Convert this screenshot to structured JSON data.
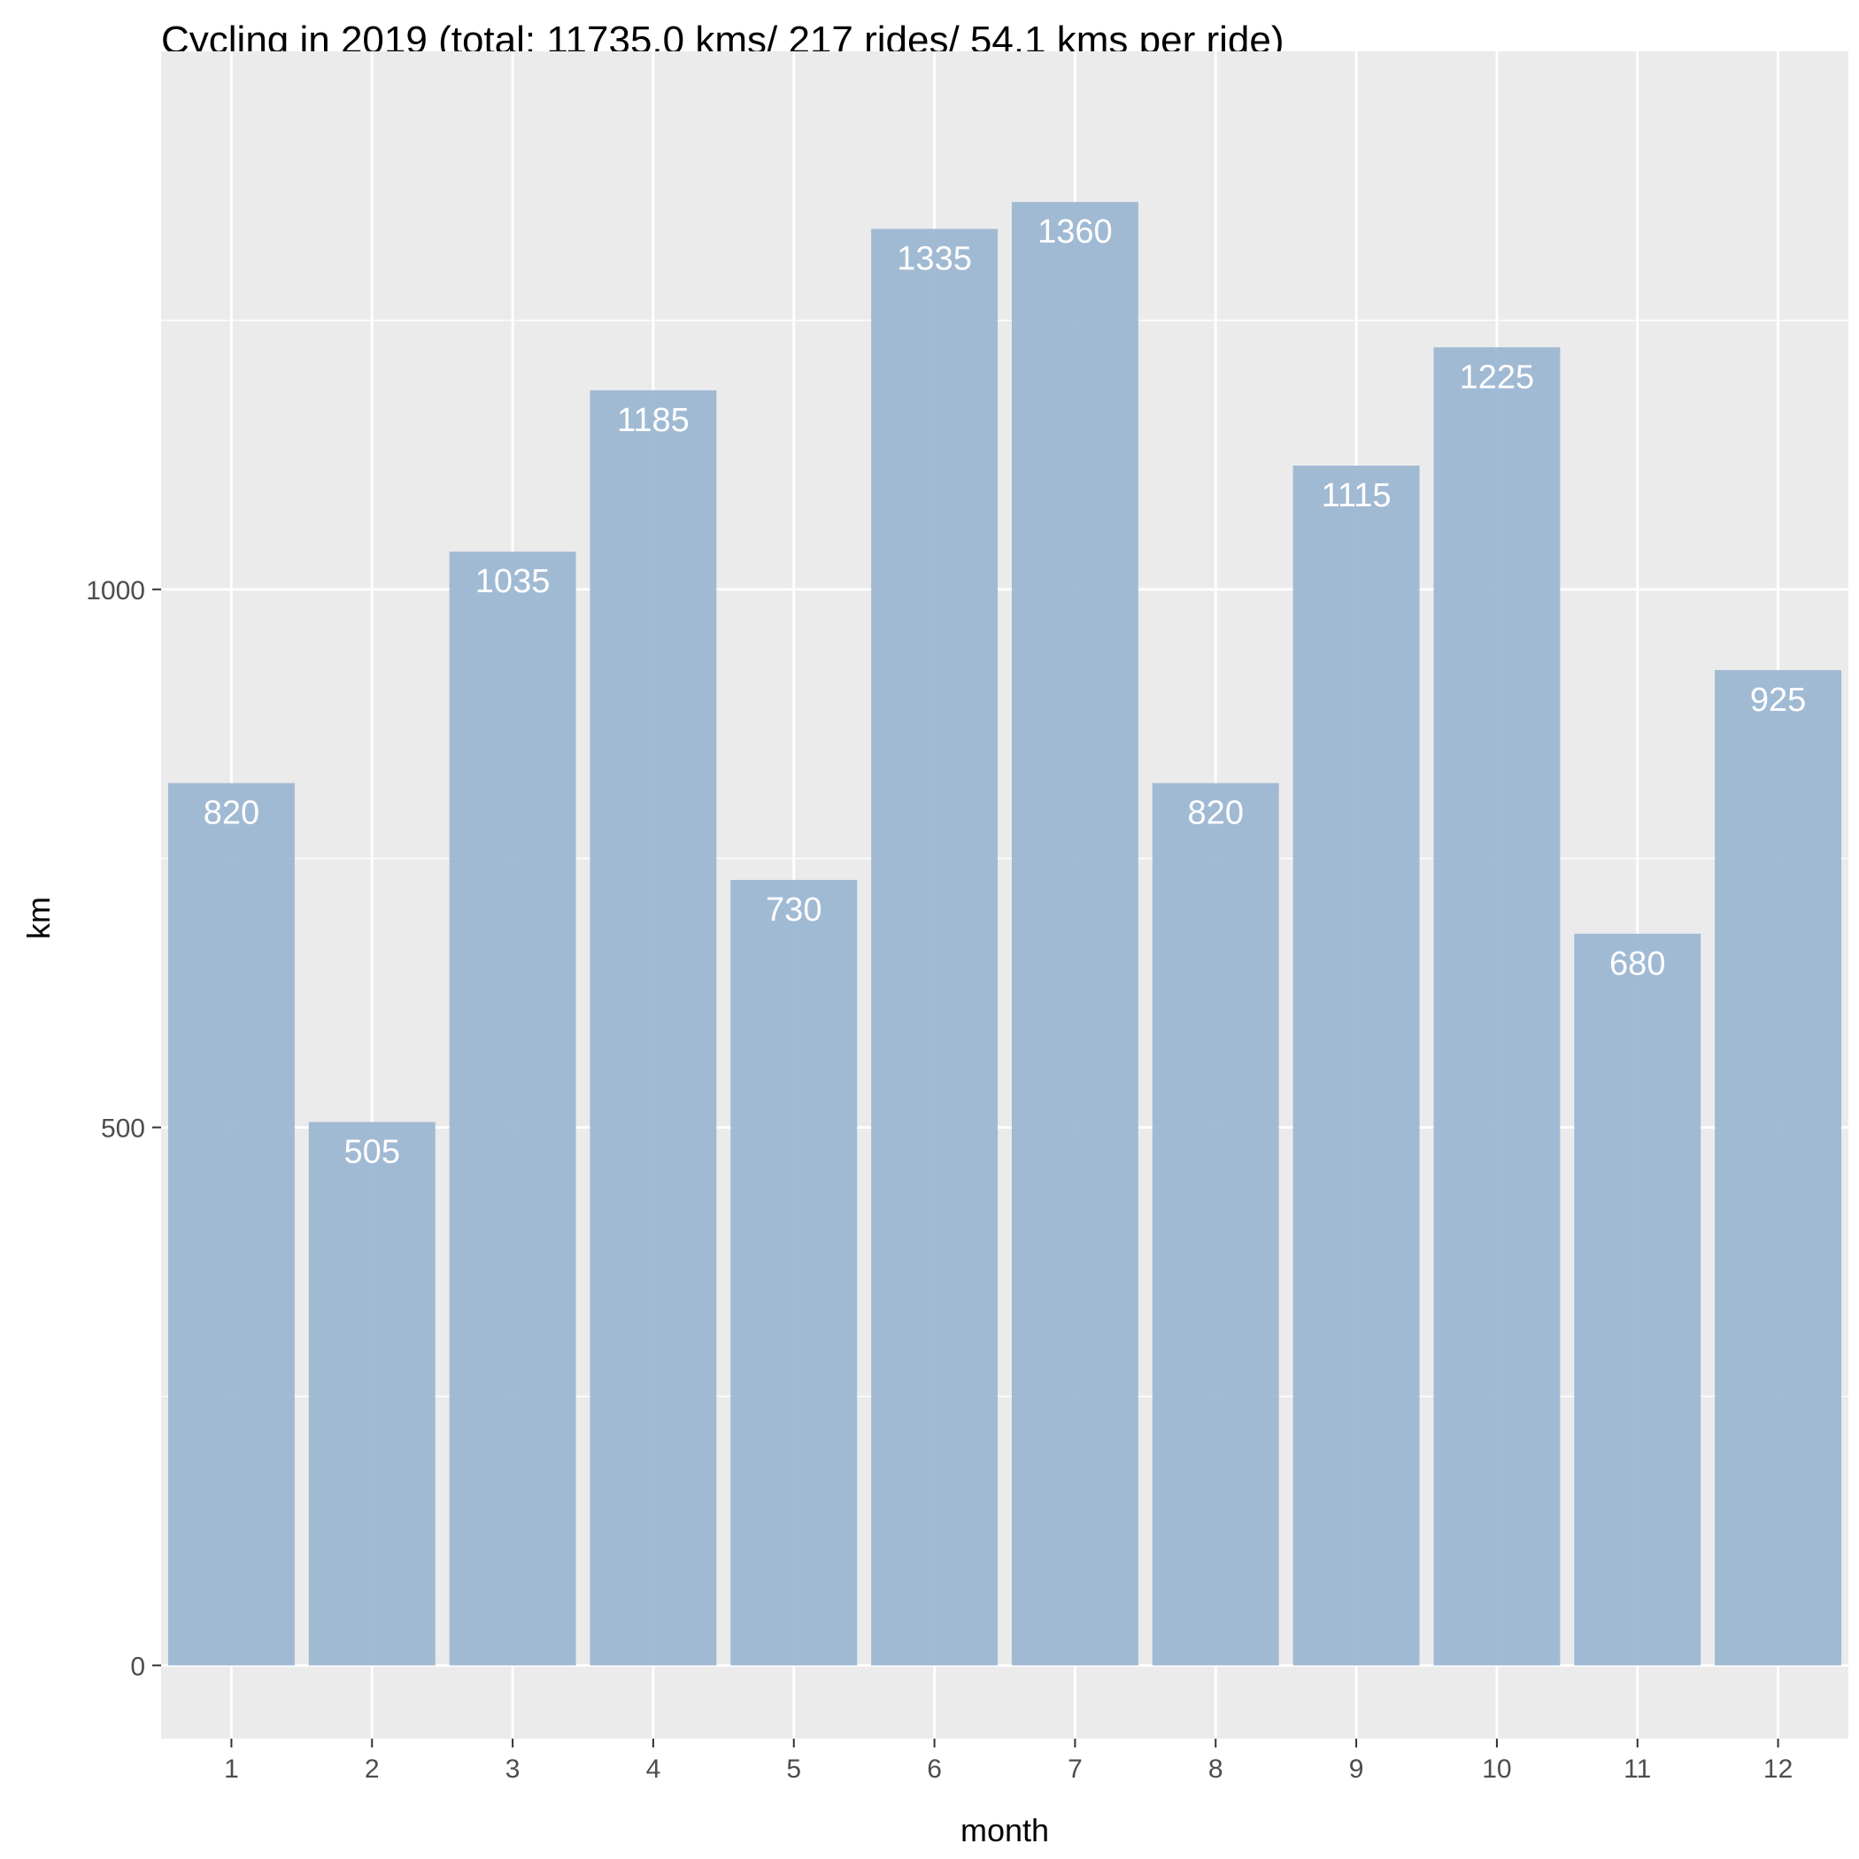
{
  "chart_data": {
    "type": "bar",
    "title": "Cycling in 2019 (total: 11735.0 kms/ 217 rides/ 54.1 kms per ride)",
    "xlabel": "month",
    "ylabel": "km",
    "categories": [
      "1",
      "2",
      "3",
      "4",
      "5",
      "6",
      "7",
      "8",
      "9",
      "10",
      "11",
      "12"
    ],
    "values": [
      820,
      505,
      1035,
      1185,
      730,
      1335,
      1360,
      820,
      1115,
      1225,
      680,
      925
    ],
    "data_labels": [
      "820",
      "505",
      "1035",
      "1185",
      "730",
      "1335",
      "1360",
      "820",
      "1115",
      "1225",
      "680",
      "925"
    ],
    "y_ticks": [
      0,
      500,
      1000
    ],
    "y_tick_labels": [
      "0",
      "500",
      "1000"
    ],
    "ylim": [
      -68,
      1500
    ],
    "grid": true,
    "legend": "none",
    "colors": {
      "bar": "#9ab5d1",
      "panel": "#ebebeb",
      "grid": "#ffffff",
      "label": "#ffffff"
    }
  }
}
